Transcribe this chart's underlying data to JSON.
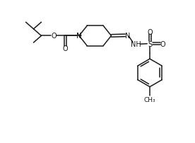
{
  "background": "#ffffff",
  "line_color": "#1a1a1a",
  "line_width": 1.1,
  "font_size": 7.0,
  "fig_width": 2.76,
  "fig_height": 2.03,
  "dpi": 100,
  "xlim": [
    0,
    10
  ],
  "ylim": [
    0,
    7.35
  ]
}
